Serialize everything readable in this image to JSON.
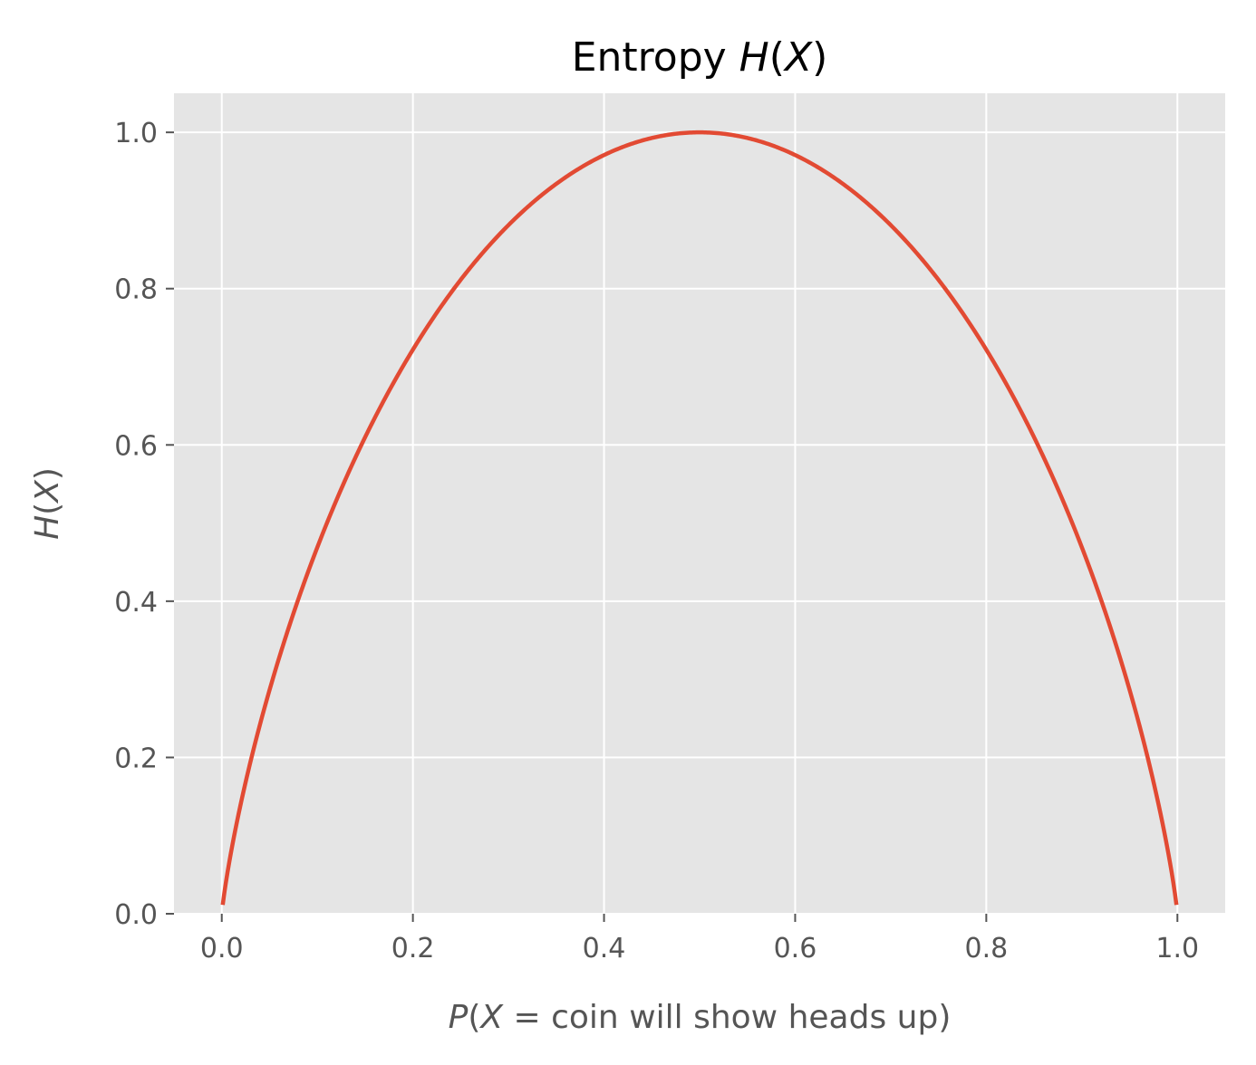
{
  "chart_data": {
    "type": "line",
    "title": {
      "prefix": "Entropy ",
      "italic": "H",
      "suffix": "(",
      "italic2": "X",
      "close": ")"
    },
    "xlabel": {
      "italic": "P",
      "open": "(",
      "italic2": "X",
      "rest": " = coin will show heads up)"
    },
    "ylabel": {
      "italic": "H",
      "open": "(",
      "italic2": "X",
      "close": ")"
    },
    "xlim": [
      -0.05,
      1.05
    ],
    "ylim": [
      0.0,
      1.05
    ],
    "x_ticks": [
      "0.0",
      "0.2",
      "0.4",
      "0.6",
      "0.8",
      "1.0"
    ],
    "x_tick_values": [
      0.0,
      0.2,
      0.4,
      0.6,
      0.8,
      1.0
    ],
    "y_ticks": [
      "0.0",
      "0.2",
      "0.4",
      "0.6",
      "0.8",
      "1.0"
    ],
    "y_tick_values": [
      0.0,
      0.2,
      0.4,
      0.6,
      0.8,
      1.0
    ],
    "grid": true,
    "series": [
      {
        "color": "#E24A33",
        "x": [
          0.001,
          0.01,
          0.02,
          0.05,
          0.1,
          0.15,
          0.2,
          0.25,
          0.3,
          0.35,
          0.4,
          0.45,
          0.5,
          0.55,
          0.6,
          0.65,
          0.7,
          0.75,
          0.8,
          0.85,
          0.9,
          0.95,
          0.98,
          0.99,
          0.999
        ],
        "y": [
          0.011,
          0.081,
          0.141,
          0.286,
          0.469,
          0.61,
          0.722,
          0.811,
          0.881,
          0.934,
          0.971,
          0.993,
          1.0,
          0.993,
          0.971,
          0.934,
          0.881,
          0.811,
          0.722,
          0.61,
          0.469,
          0.286,
          0.141,
          0.081,
          0.011
        ]
      }
    ],
    "colors": {
      "plot_background": "#E5E5E5",
      "grid": "#FFFFFF",
      "line": "#E24A33",
      "tick_label": "#555555",
      "title": "#000000"
    }
  }
}
